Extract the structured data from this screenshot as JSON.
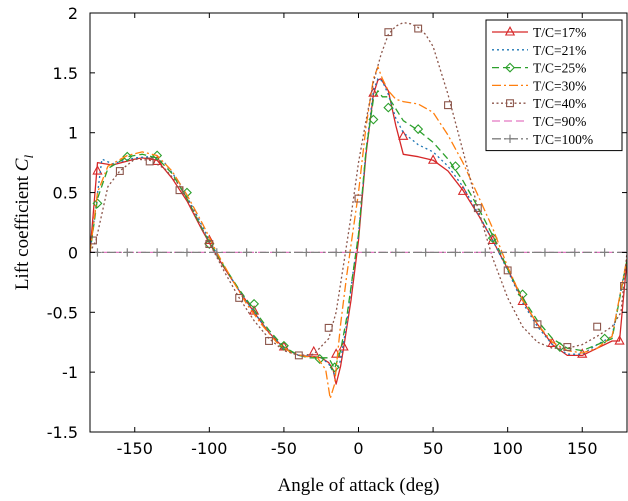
{
  "chart_data": {
    "type": "line",
    "xlabel": "Angle of attack (deg)",
    "ylabel": "Lift coefficient C",
    "ylabel_sub": "l",
    "xlim": [
      -180,
      180
    ],
    "ylim": [
      -1.5,
      2
    ],
    "xticks": [
      -150,
      -100,
      -50,
      0,
      50,
      100,
      150
    ],
    "yticks": [
      -1.5,
      -1,
      -0.5,
      0,
      0.5,
      1,
      1.5,
      2
    ],
    "xtick_labels": [
      "-150",
      "-100",
      "-50",
      "0",
      "50",
      "100",
      "150"
    ],
    "ytick_labels": [
      "-1.5",
      "-1",
      "-0.5",
      "0",
      "0.5",
      "1",
      "1.5",
      "2"
    ],
    "grid": false,
    "legend_position": "top-right",
    "series": [
      {
        "name": "T/C=17%",
        "color": "#d62728",
        "dash": "",
        "marker": "triangle",
        "x": [
          -180,
          -175,
          -165,
          -150,
          -145,
          -135,
          -125,
          -115,
          -105,
          -100,
          -90,
          -80,
          -70,
          -60,
          -50,
          -40,
          -30,
          -25,
          -20,
          -17,
          -15,
          -12,
          -10,
          -5,
          0,
          5,
          10,
          13,
          15,
          20,
          25,
          30,
          40,
          50,
          60,
          70,
          80,
          90,
          100,
          110,
          120,
          130,
          140,
          150,
          160,
          170,
          175,
          180
        ],
        "y": [
          0,
          0.75,
          0.73,
          0.78,
          0.79,
          0.77,
          0.62,
          0.43,
          0.19,
          0.08,
          -0.13,
          -0.32,
          -0.5,
          -0.67,
          -0.8,
          -0.86,
          -0.87,
          -0.88,
          -0.92,
          -0.98,
          -1.1,
          -0.95,
          -0.8,
          -0.4,
          0.1,
          0.82,
          1.32,
          1.44,
          1.45,
          1.35,
          1.06,
          0.82,
          0.8,
          0.77,
          0.68,
          0.52,
          0.32,
          0.1,
          -0.14,
          -0.4,
          -0.6,
          -0.77,
          -0.86,
          -0.86,
          -0.8,
          -0.74,
          -0.74,
          -0.06
        ],
        "markers_x": [
          -175,
          -135,
          -100,
          -70,
          -50,
          -30,
          -15,
          -10,
          10,
          30,
          50,
          70,
          90,
          110,
          130,
          150,
          175
        ],
        "markers_y": [
          0.68,
          0.76,
          0.1,
          -0.49,
          -0.79,
          -0.83,
          -0.85,
          -0.79,
          1.33,
          0.97,
          0.77,
          0.51,
          0.1,
          -0.41,
          -0.76,
          -0.85,
          -0.74
        ]
      },
      {
        "name": "T/C=21%",
        "color": "#1f77b4",
        "dash": "2,3",
        "marker": "none",
        "x": [
          -180,
          -172,
          -165,
          -150,
          -140,
          -130,
          -120,
          -110,
          -100,
          -90,
          -80,
          -70,
          -60,
          -50,
          -40,
          -30,
          -25,
          -20,
          -16,
          -12,
          -8,
          -4,
          0,
          5,
          10,
          13,
          16,
          20,
          25,
          30,
          40,
          50,
          60,
          70,
          80,
          90,
          100,
          110,
          120,
          130,
          140,
          150,
          160,
          170,
          180
        ],
        "y": [
          0,
          0.78,
          0.74,
          0.79,
          0.8,
          0.75,
          0.58,
          0.35,
          0.1,
          -0.12,
          -0.32,
          -0.5,
          -0.67,
          -0.8,
          -0.86,
          -0.87,
          -0.88,
          -0.93,
          -1.02,
          -0.9,
          -0.6,
          -0.2,
          0.15,
          0.85,
          1.35,
          1.45,
          1.43,
          1.32,
          1.12,
          1.0,
          0.9,
          0.84,
          0.72,
          0.55,
          0.33,
          0.1,
          -0.15,
          -0.42,
          -0.62,
          -0.77,
          -0.85,
          -0.85,
          -0.77,
          -0.7,
          -0.05
        ]
      },
      {
        "name": "T/C=25%",
        "color": "#2ca02c",
        "dash": "7,4",
        "marker": "diamond",
        "x": [
          -180,
          -175,
          -168,
          -155,
          -145,
          -135,
          -125,
          -115,
          -105,
          -100,
          -90,
          -80,
          -70,
          -60,
          -50,
          -40,
          -33,
          -26,
          -20,
          -16,
          -12,
          -8,
          -4,
          0,
          5,
          10,
          13,
          16,
          20,
          25,
          30,
          40,
          50,
          60,
          70,
          80,
          90,
          100,
          110,
          120,
          130,
          140,
          150,
          160,
          170,
          180
        ],
        "y": [
          0,
          0.45,
          0.7,
          0.8,
          0.82,
          0.79,
          0.66,
          0.45,
          0.2,
          0.09,
          -0.12,
          -0.31,
          -0.48,
          -0.65,
          -0.79,
          -0.86,
          -0.88,
          -0.88,
          -0.88,
          -0.97,
          -0.82,
          -0.55,
          -0.2,
          0.15,
          0.85,
          1.28,
          1.35,
          1.3,
          1.3,
          1.2,
          1.1,
          1.02,
          0.92,
          0.78,
          0.6,
          0.38,
          0.14,
          -0.14,
          -0.38,
          -0.57,
          -0.72,
          -0.8,
          -0.82,
          -0.77,
          -0.72,
          -0.06
        ],
        "markers_x": [
          -175,
          -155,
          -135,
          -115,
          -100,
          -70,
          -50,
          -26,
          -16,
          10,
          20,
          40,
          65,
          90,
          110,
          135,
          165
        ],
        "markers_y": [
          0.41,
          0.8,
          0.81,
          0.5,
          0.07,
          -0.43,
          -0.78,
          -0.89,
          -0.96,
          1.11,
          1.21,
          1.03,
          0.72,
          0.12,
          -0.35,
          -0.79,
          -0.72
        ]
      },
      {
        "name": "T/C=30%",
        "color": "#ff7f0e",
        "dash": "9,3,2,3",
        "marker": "none",
        "x": [
          -180,
          -175,
          -168,
          -155,
          -145,
          -135,
          -125,
          -115,
          -105,
          -95,
          -85,
          -75,
          -65,
          -55,
          -45,
          -35,
          -28,
          -22,
          -19,
          -16,
          -12,
          -8,
          -4,
          0,
          5,
          10,
          13,
          16,
          20,
          25,
          30,
          40,
          50,
          60,
          70,
          80,
          90,
          100,
          110,
          120,
          130,
          140,
          150,
          160,
          170,
          180
        ],
        "y": [
          0,
          0.5,
          0.72,
          0.81,
          0.84,
          0.81,
          0.68,
          0.48,
          0.25,
          0.0,
          -0.22,
          -0.43,
          -0.6,
          -0.75,
          -0.84,
          -0.87,
          -0.87,
          -0.98,
          -1.22,
          -1.1,
          -0.6,
          -0.2,
          0.15,
          0.5,
          1.05,
          1.45,
          1.55,
          1.45,
          1.35,
          1.28,
          1.26,
          1.24,
          1.17,
          0.98,
          0.75,
          0.48,
          0.2,
          -0.12,
          -0.4,
          -0.6,
          -0.75,
          -0.82,
          -0.84,
          -0.8,
          -0.7,
          -0.05
        ]
      },
      {
        "name": "T/C=40%",
        "color": "#8c564b",
        "dash": "2,2.5",
        "marker": "square",
        "x": [
          -180,
          -176,
          -168,
          -160,
          -150,
          -140,
          -130,
          -120,
          -110,
          -100,
          -90,
          -80,
          -70,
          -60,
          -50,
          -40,
          -30,
          -20,
          -15,
          -10,
          -5,
          0,
          5,
          10,
          15,
          20,
          25,
          30,
          35,
          40,
          45,
          50,
          60,
          70,
          80,
          90,
          100,
          110,
          120,
          130,
          140,
          150,
          160,
          170,
          176,
          180
        ],
        "y": [
          0,
          0.1,
          0.55,
          0.68,
          0.78,
          0.77,
          0.7,
          0.56,
          0.33,
          0.08,
          -0.16,
          -0.38,
          -0.57,
          -0.72,
          -0.82,
          -0.86,
          -0.85,
          -0.72,
          -0.5,
          -0.1,
          0.3,
          0.75,
          1.1,
          1.42,
          1.65,
          1.82,
          1.89,
          1.92,
          1.91,
          1.88,
          1.82,
          1.72,
          1.32,
          0.85,
          0.37,
          -0.05,
          -0.38,
          -0.62,
          -0.75,
          -0.8,
          -0.8,
          -0.77,
          -0.7,
          -0.62,
          -0.5,
          0.0
        ],
        "markers_x": [
          -178,
          -160,
          -140,
          -120,
          -100,
          -80,
          -60,
          -40,
          -20,
          0,
          20,
          40,
          60,
          80,
          100,
          120,
          140,
          160,
          178
        ],
        "markers_y": [
          0.1,
          0.68,
          0.76,
          0.52,
          0.07,
          -0.38,
          -0.74,
          -0.86,
          -0.63,
          0.45,
          1.84,
          1.87,
          1.23,
          0.37,
          -0.15,
          -0.6,
          -0.79,
          -0.62,
          -0.28
        ]
      },
      {
        "name": "T/C=90%",
        "color": "#e377c2",
        "dash": "8,4",
        "marker": "none",
        "x": [
          -180,
          180
        ],
        "y": [
          0,
          0
        ]
      },
      {
        "name": "T/C=100%",
        "color": "#7f7f7f",
        "dash": "9,3,2,3",
        "marker": "plus",
        "x": [
          -180,
          180
        ],
        "y": [
          0,
          0
        ],
        "markers_x": [
          -175,
          -155,
          -135,
          -115,
          -95,
          -75,
          -55,
          -35,
          -15,
          5,
          25,
          45,
          65,
          85,
          105,
          125,
          145,
          165
        ],
        "markers_y": [
          0,
          0,
          0,
          0,
          0,
          0,
          0,
          0,
          0,
          0,
          0,
          0,
          0,
          0,
          0,
          0,
          0,
          0
        ]
      }
    ]
  }
}
